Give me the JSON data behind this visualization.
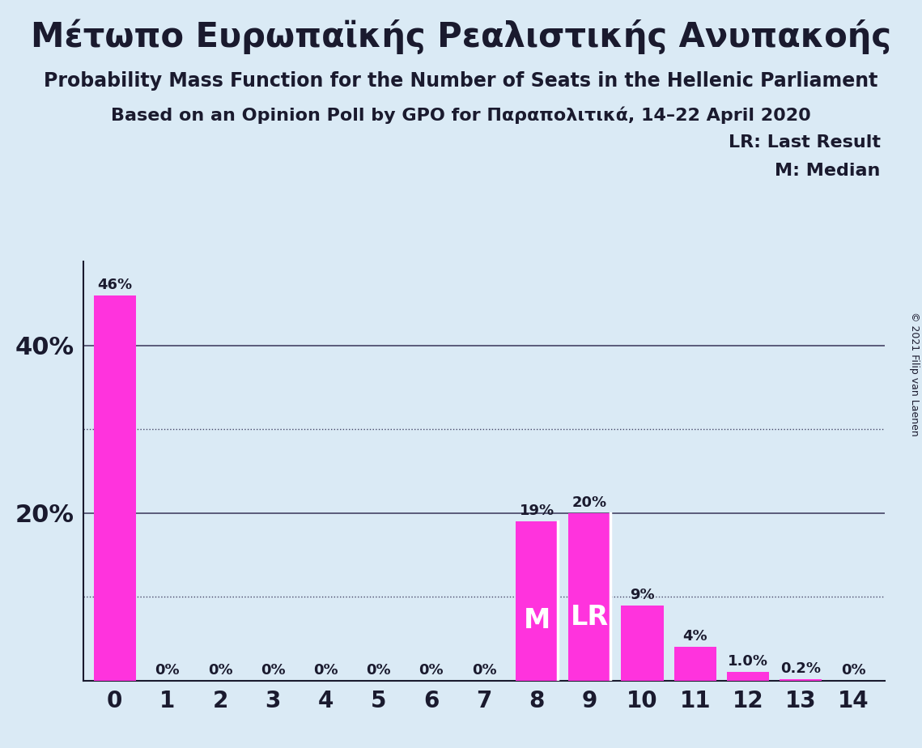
{
  "title_greek": "Μέτωπο Ευρωπαϊκής Ρεαλιστικής Ανυπακοής",
  "subtitle1": "Probability Mass Function for the Number of Seats in the Hellenic Parliament",
  "subtitle2": "Based on an Opinion Poll by GPO for Παραπολιτικά, 14–22 April 2020",
  "copyright": "© 2021 Filip van Laenen",
  "categories": [
    0,
    1,
    2,
    3,
    4,
    5,
    6,
    7,
    8,
    9,
    10,
    11,
    12,
    13,
    14
  ],
  "values": [
    0.46,
    0.0,
    0.0,
    0.0,
    0.0,
    0.0,
    0.0,
    0.0,
    0.19,
    0.2,
    0.09,
    0.04,
    0.01,
    0.002,
    0.0
  ],
  "labels": [
    "46%",
    "0%",
    "0%",
    "0%",
    "0%",
    "0%",
    "0%",
    "0%",
    "19%",
    "20%",
    "9%",
    "4%",
    "1.0%",
    "0.2%",
    "0%"
  ],
  "bar_color": "#ff33dd",
  "background_color": "#daeaf5",
  "text_color": "#1a1a2e",
  "median_bar": 8,
  "lr_bar": 9,
  "legend_lr": "LR: Last Result",
  "legend_m": "M: Median",
  "solid_yticks": [
    0.2,
    0.4
  ],
  "dotted_yticks": [
    0.1,
    0.3
  ],
  "ytick_positions": [
    0.2,
    0.4
  ],
  "ytick_labels": [
    "20%",
    "40%"
  ],
  "ylim": [
    0,
    0.5
  ]
}
